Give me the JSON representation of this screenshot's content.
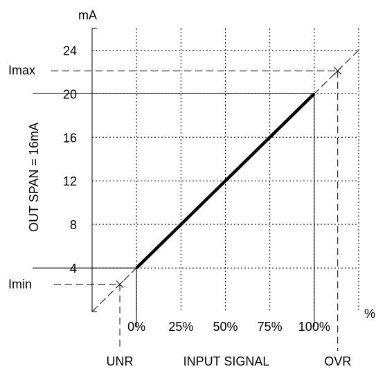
{
  "chart_data": {
    "type": "line",
    "title": "",
    "xlabel": "INPUT SIGNAL",
    "ylabel": "OUT SPAN = 16mA",
    "x_unit": "%",
    "y_unit": "mA",
    "xlim": [
      -25,
      125
    ],
    "ylim": [
      0,
      26
    ],
    "x_ticks": [
      {
        "value": 0,
        "label": "0%"
      },
      {
        "value": 25,
        "label": "25%"
      },
      {
        "value": 50,
        "label": "50%"
      },
      {
        "value": 75,
        "label": "75%"
      },
      {
        "value": 100,
        "label": "100%"
      }
    ],
    "x_grid": [
      -25,
      0,
      25,
      50,
      75,
      100,
      125
    ],
    "y_ticks": [
      {
        "value": 4,
        "label": "4"
      },
      {
        "value": 8,
        "label": "8"
      },
      {
        "value": 12,
        "label": "12"
      },
      {
        "value": 16,
        "label": "16"
      },
      {
        "value": 20,
        "label": "20"
      },
      {
        "value": 24,
        "label": "24"
      }
    ],
    "y_grid": [
      4,
      8,
      12,
      16,
      20,
      24
    ],
    "grid": true,
    "series": [
      {
        "style": "solid-bold",
        "x": [
          0,
          100
        ],
        "y": [
          4,
          20
        ]
      }
    ],
    "reference_line": {
      "style": "dashed",
      "x": [
        -25,
        125
      ],
      "y": [
        0,
        24
      ]
    },
    "markers": [
      {
        "label": "Imin",
        "x": -9.4,
        "y": 2.5,
        "x_label": "UNR"
      },
      {
        "label": "Imax",
        "x": 113.2,
        "y": 22.1,
        "x_label": "OVR"
      }
    ]
  }
}
